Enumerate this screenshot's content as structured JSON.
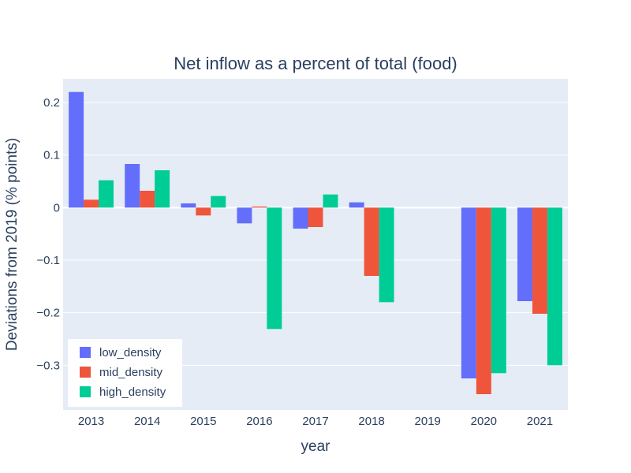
{
  "chart_data": {
    "type": "bar",
    "title": "Net inflow as a percent of total (food)",
    "xlabel": "year",
    "ylabel": "Deviations from 2019 (% points)",
    "categories": [
      "2013",
      "2014",
      "2015",
      "2016",
      "2017",
      "2018",
      "2019",
      "2020",
      "2021"
    ],
    "ylim": [
      -0.385,
      0.245
    ],
    "yticks": [
      0.2,
      0.1,
      0,
      -0.1,
      -0.2,
      -0.3
    ],
    "ytick_labels": [
      "0.2",
      "0.1",
      "0",
      "−0.1",
      "−0.2",
      "−0.3"
    ],
    "grid": true,
    "legend_position": "bottom-left",
    "series": [
      {
        "name": "low_density",
        "color": "#636efa",
        "values": [
          0.22,
          0.083,
          0.008,
          -0.03,
          -0.04,
          0.01,
          0,
          -0.325,
          -0.178
        ]
      },
      {
        "name": "mid_density",
        "color": "#ef553b",
        "values": [
          0.015,
          0.032,
          -0.015,
          0.002,
          -0.037,
          -0.13,
          0,
          -0.355,
          -0.202
        ]
      },
      {
        "name": "high_density",
        "color": "#00cc96",
        "values": [
          0.052,
          0.071,
          0.022,
          -0.231,
          0.025,
          -0.18,
          0,
          -0.315,
          -0.3
        ]
      }
    ]
  },
  "colors": {
    "plot_background": "#e5ecf6",
    "grid": "#ffffff",
    "text": "#2a3f5f"
  }
}
